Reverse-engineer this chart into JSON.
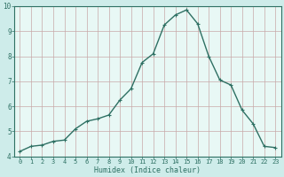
{
  "x": [
    0,
    1,
    2,
    3,
    4,
    5,
    6,
    7,
    8,
    9,
    10,
    11,
    12,
    13,
    14,
    15,
    16,
    17,
    18,
    19,
    20,
    21,
    22,
    23
  ],
  "y": [
    4.2,
    4.4,
    4.45,
    4.6,
    4.65,
    5.1,
    5.4,
    5.5,
    5.65,
    6.25,
    6.7,
    7.75,
    8.1,
    9.25,
    9.65,
    9.85,
    9.3,
    8.0,
    7.05,
    6.85,
    5.85,
    5.3,
    4.4,
    4.35
  ],
  "line_color": "#2e7063",
  "marker": "P",
  "marker_size": 2.5,
  "bg_color": "#ceecea",
  "grid_color_major": "#c8a0a0",
  "grid_color_minor": "#d8c0c0",
  "plot_bg": "#e8f8f5",
  "xlabel": "Humidex (Indice chaleur)",
  "xlabel_color": "#2e7063",
  "tick_color": "#2e7063",
  "spine_color": "#2e7063",
  "xlim": [
    -0.5,
    23.5
  ],
  "ylim": [
    4,
    10
  ],
  "yticks": [
    4,
    5,
    6,
    7,
    8,
    9,
    10
  ],
  "xticks": [
    0,
    1,
    2,
    3,
    4,
    5,
    6,
    7,
    8,
    9,
    10,
    11,
    12,
    13,
    14,
    15,
    16,
    17,
    18,
    19,
    20,
    21,
    22,
    23
  ],
  "linewidth": 1.0,
  "tick_fontsize": 5.0,
  "xlabel_fontsize": 6.0
}
